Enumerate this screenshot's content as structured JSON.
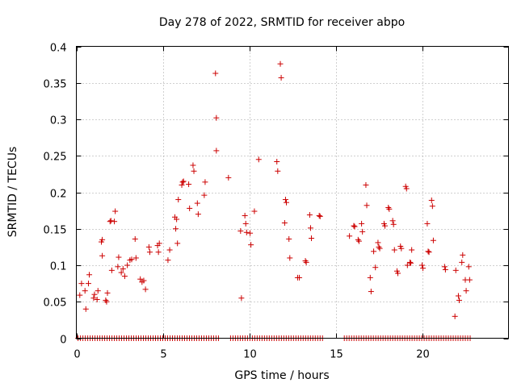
{
  "chart_data": {
    "type": "scatter",
    "title": "Day 278 of 2022, SRMTID for receiver abpo",
    "xlabel": "GPS time / hours",
    "ylabel": "SRMTID / TECUs",
    "xlim": [
      0,
      25
    ],
    "ylim": [
      0,
      0.4
    ],
    "xticks": [
      0,
      5,
      10,
      15,
      20
    ],
    "xtick_labels": [
      "0",
      "5",
      "10",
      "15",
      "20"
    ],
    "yticks": [
      0,
      0.05,
      0.1,
      0.15,
      0.2,
      0.25,
      0.3,
      0.35,
      0.4
    ],
    "ytick_labels": [
      "0",
      "0.05",
      "0.1",
      "0.15",
      "0.2",
      "0.25",
      "0.3",
      "0.35",
      "0.4"
    ],
    "grid": true,
    "marker": "plus",
    "color": "#cc0000",
    "zero_baseline": {
      "x_start": 0.1,
      "x_end": 22.8,
      "step": 0.14,
      "value": 0,
      "gaps": [
        [
          8.3,
          8.8
        ],
        [
          14.3,
          15.5
        ]
      ]
    },
    "series": [
      {
        "name": "SRMTID",
        "points": [
          [
            0.2,
            0.059
          ],
          [
            0.3,
            0.075
          ],
          [
            0.5,
            0.065
          ],
          [
            0.55,
            0.04
          ],
          [
            0.7,
            0.075
          ],
          [
            0.75,
            0.087
          ],
          [
            1.0,
            0.055
          ],
          [
            1.05,
            0.06
          ],
          [
            1.2,
            0.053
          ],
          [
            1.25,
            0.065
          ],
          [
            1.45,
            0.132
          ],
          [
            1.5,
            0.135
          ],
          [
            1.5,
            0.113
          ],
          [
            1.7,
            0.052
          ],
          [
            1.75,
            0.05
          ],
          [
            1.8,
            0.062
          ],
          [
            1.95,
            0.16
          ],
          [
            2.0,
            0.161
          ],
          [
            2.05,
            0.093
          ],
          [
            2.2,
            0.16
          ],
          [
            2.25,
            0.174
          ],
          [
            2.4,
            0.098
          ],
          [
            2.45,
            0.111
          ],
          [
            2.6,
            0.09
          ],
          [
            2.7,
            0.095
          ],
          [
            2.8,
            0.085
          ],
          [
            2.95,
            0.1
          ],
          [
            3.1,
            0.107
          ],
          [
            3.2,
            0.108
          ],
          [
            3.4,
            0.136
          ],
          [
            3.45,
            0.11
          ],
          [
            3.7,
            0.081
          ],
          [
            3.8,
            0.077
          ],
          [
            3.9,
            0.079
          ],
          [
            4.0,
            0.067
          ],
          [
            4.2,
            0.125
          ],
          [
            4.25,
            0.118
          ],
          [
            4.7,
            0.127
          ],
          [
            4.75,
            0.118
          ],
          [
            4.8,
            0.13
          ],
          [
            5.3,
            0.107
          ],
          [
            5.4,
            0.121
          ],
          [
            5.7,
            0.166
          ],
          [
            5.75,
            0.15
          ],
          [
            5.8,
            0.163
          ],
          [
            5.85,
            0.13
          ],
          [
            5.9,
            0.19
          ],
          [
            6.1,
            0.21
          ],
          [
            6.15,
            0.214
          ],
          [
            6.2,
            0.215
          ],
          [
            6.5,
            0.211
          ],
          [
            6.55,
            0.178
          ],
          [
            6.75,
            0.237
          ],
          [
            6.8,
            0.229
          ],
          [
            7.0,
            0.185
          ],
          [
            7.05,
            0.17
          ],
          [
            7.4,
            0.196
          ],
          [
            7.45,
            0.214
          ],
          [
            8.05,
            0.363
          ],
          [
            8.1,
            0.302
          ],
          [
            8.1,
            0.257
          ],
          [
            8.8,
            0.22
          ],
          [
            9.5,
            0.147
          ],
          [
            9.55,
            0.055
          ],
          [
            9.75,
            0.168
          ],
          [
            9.8,
            0.157
          ],
          [
            9.85,
            0.145
          ],
          [
            10.05,
            0.144
          ],
          [
            10.1,
            0.128
          ],
          [
            10.3,
            0.174
          ],
          [
            10.55,
            0.245
          ],
          [
            11.6,
            0.242
          ],
          [
            11.65,
            0.229
          ],
          [
            11.8,
            0.376
          ],
          [
            11.85,
            0.357
          ],
          [
            12.05,
            0.158
          ],
          [
            12.1,
            0.19
          ],
          [
            12.15,
            0.186
          ],
          [
            12.3,
            0.136
          ],
          [
            12.35,
            0.11
          ],
          [
            12.8,
            0.083
          ],
          [
            12.9,
            0.083
          ],
          [
            13.25,
            0.106
          ],
          [
            13.3,
            0.104
          ],
          [
            13.5,
            0.169
          ],
          [
            13.55,
            0.151
          ],
          [
            13.6,
            0.137
          ],
          [
            14.05,
            0.168
          ],
          [
            14.1,
            0.167
          ],
          [
            15.8,
            0.14
          ],
          [
            16.05,
            0.154
          ],
          [
            16.1,
            0.153
          ],
          [
            16.3,
            0.135
          ],
          [
            16.35,
            0.133
          ],
          [
            16.5,
            0.157
          ],
          [
            16.55,
            0.146
          ],
          [
            16.75,
            0.21
          ],
          [
            16.8,
            0.182
          ],
          [
            17.0,
            0.083
          ],
          [
            17.05,
            0.064
          ],
          [
            17.2,
            0.119
          ],
          [
            17.3,
            0.097
          ],
          [
            17.45,
            0.131
          ],
          [
            17.5,
            0.125
          ],
          [
            17.55,
            0.123
          ],
          [
            17.8,
            0.157
          ],
          [
            17.85,
            0.154
          ],
          [
            18.05,
            0.179
          ],
          [
            18.1,
            0.177
          ],
          [
            18.3,
            0.161
          ],
          [
            18.35,
            0.156
          ],
          [
            18.4,
            0.121
          ],
          [
            18.55,
            0.092
          ],
          [
            18.6,
            0.089
          ],
          [
            18.75,
            0.126
          ],
          [
            18.8,
            0.123
          ],
          [
            19.05,
            0.208
          ],
          [
            19.1,
            0.205
          ],
          [
            19.15,
            0.1
          ],
          [
            19.3,
            0.104
          ],
          [
            19.35,
            0.103
          ],
          [
            19.4,
            0.121
          ],
          [
            20.0,
            0.1
          ],
          [
            20.05,
            0.096
          ],
          [
            20.3,
            0.157
          ],
          [
            20.35,
            0.119
          ],
          [
            20.4,
            0.118
          ],
          [
            20.55,
            0.189
          ],
          [
            20.6,
            0.181
          ],
          [
            20.65,
            0.134
          ],
          [
            21.3,
            0.098
          ],
          [
            21.35,
            0.094
          ],
          [
            21.9,
            0.03
          ],
          [
            21.95,
            0.093
          ],
          [
            22.1,
            0.058
          ],
          [
            22.15,
            0.052
          ],
          [
            22.3,
            0.104
          ],
          [
            22.35,
            0.114
          ],
          [
            22.5,
            0.08
          ],
          [
            22.55,
            0.065
          ],
          [
            22.7,
            0.098
          ],
          [
            22.75,
            0.08
          ]
        ]
      }
    ]
  }
}
